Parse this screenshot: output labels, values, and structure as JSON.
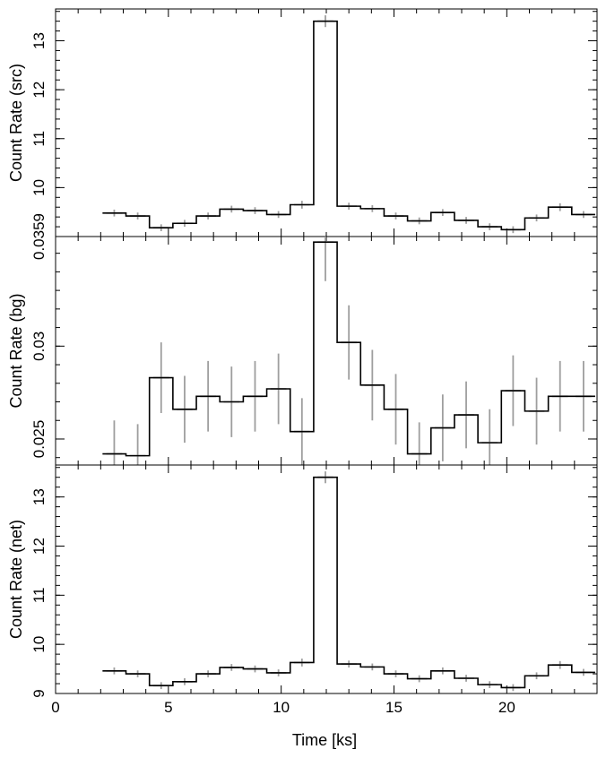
{
  "chart_data": {
    "type": "line",
    "style": "step-histogram with error bars",
    "shared_x": {
      "label": "Time [ks]",
      "range": [
        0,
        24
      ],
      "ticks": [
        0,
        5,
        10,
        15,
        20
      ],
      "tick_labels": [
        "0",
        "5",
        "10",
        "15",
        "20"
      ]
    },
    "bin_width": 1.04,
    "x": [
      2.6,
      3.64,
      4.68,
      5.72,
      6.76,
      7.8,
      8.84,
      9.88,
      10.92,
      11.96,
      13.0,
      14.04,
      15.08,
      16.12,
      17.16,
      18.2,
      19.24,
      20.28,
      21.32,
      22.36,
      23.4
    ],
    "panels": [
      {
        "ylabel": "Count Rate (src)",
        "ylim": [
          9.0,
          13.65
        ],
        "yticks": [
          10,
          11,
          12,
          13
        ],
        "ytick_labels": [
          "10",
          "11",
          "12",
          "13"
        ],
        "values": [
          9.48,
          9.42,
          9.18,
          9.27,
          9.42,
          9.56,
          9.53,
          9.45,
          9.65,
          13.4,
          9.62,
          9.57,
          9.42,
          9.32,
          9.49,
          9.33,
          9.2,
          9.14,
          9.38,
          9.6,
          9.45
        ],
        "errors": [
          0.07,
          0.07,
          0.07,
          0.07,
          0.07,
          0.07,
          0.07,
          0.07,
          0.08,
          0.12,
          0.07,
          0.07,
          0.07,
          0.07,
          0.07,
          0.07,
          0.07,
          0.07,
          0.07,
          0.08,
          0.07
        ],
        "series": [
          {
            "values_ref": "values"
          }
        ]
      },
      {
        "ylabel": "Count Rate (bg)",
        "ylim": [
          0.0236,
          0.0359
        ],
        "yticks": [
          0.025,
          0.03,
          0.0359
        ],
        "ytick_labels": [
          "0.025",
          "0.03",
          "0.0359"
        ],
        "values": [
          0.0242,
          0.0241,
          0.0283,
          0.0266,
          0.0273,
          0.027,
          0.0273,
          0.0277,
          0.0254,
          0.0356,
          0.0302,
          0.0279,
          0.0266,
          0.0242,
          0.0256,
          0.0263,
          0.0248,
          0.0276,
          0.0265,
          0.0273,
          0.0273
        ],
        "errors": [
          0.0018,
          0.0017,
          0.0019,
          0.0018,
          0.0019,
          0.0019,
          0.0019,
          0.0019,
          0.0018,
          0.0021,
          0.002,
          0.0019,
          0.0019,
          0.0017,
          0.0018,
          0.0018,
          0.0018,
          0.0019,
          0.0018,
          0.0019,
          0.0019
        ]
      },
      {
        "ylabel": "Count Rate (net)",
        "ylim": [
          9.0,
          13.65
        ],
        "yticks": [
          9,
          10,
          11,
          12,
          13
        ],
        "ytick_labels": [
          "9",
          "10",
          "11",
          "12",
          "13"
        ],
        "values": [
          9.46,
          9.4,
          9.16,
          9.24,
          9.4,
          9.53,
          9.5,
          9.42,
          9.63,
          13.4,
          9.6,
          9.54,
          9.4,
          9.3,
          9.46,
          9.31,
          9.18,
          9.12,
          9.36,
          9.58,
          9.43
        ],
        "errors": [
          0.07,
          0.07,
          0.07,
          0.07,
          0.07,
          0.07,
          0.07,
          0.07,
          0.08,
          0.12,
          0.07,
          0.07,
          0.07,
          0.07,
          0.07,
          0.07,
          0.07,
          0.07,
          0.07,
          0.08,
          0.07
        ]
      }
    ],
    "grid": false,
    "legend": "none",
    "colors": {
      "line": "#000000",
      "error_bars": "#9e9e9e",
      "background": "#ffffff"
    }
  }
}
